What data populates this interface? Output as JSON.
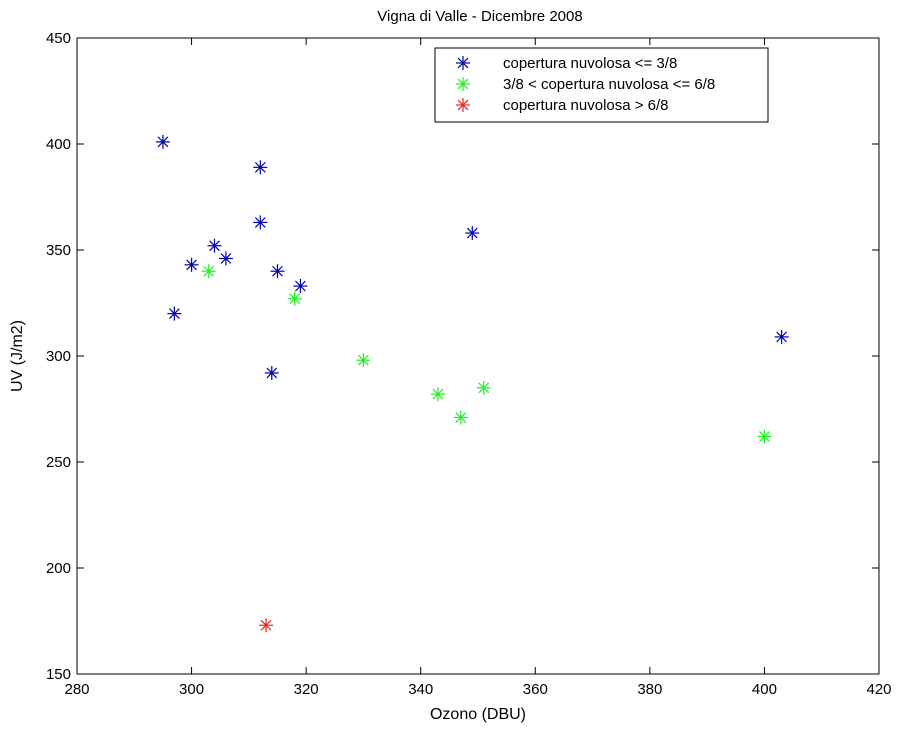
{
  "chart_data": {
    "type": "scatter",
    "title": "Vigna di Valle - Dicembre 2008",
    "xlabel": "Ozono (DBU)",
    "ylabel": "UV (J/m2)",
    "xlim": [
      280,
      420
    ],
    "ylim": [
      150,
      450
    ],
    "xticks": [
      280,
      300,
      320,
      340,
      360,
      380,
      400,
      420
    ],
    "yticks": [
      150,
      200,
      250,
      300,
      350,
      400,
      450
    ],
    "grid": false,
    "legend_position": "top-right",
    "marker": "asterisk",
    "series": [
      {
        "name": "copertura nuvolosa <= 3/8",
        "color": "#0000aa",
        "points": [
          [
            295,
            401
          ],
          [
            312,
            389
          ],
          [
            312,
            363
          ],
          [
            304,
            352
          ],
          [
            306,
            346
          ],
          [
            300,
            343
          ],
          [
            315,
            340
          ],
          [
            319,
            333
          ],
          [
            297,
            320
          ],
          [
            314,
            292
          ],
          [
            349,
            358
          ],
          [
            403,
            309
          ]
        ]
      },
      {
        "name": "3/8 < copertura nuvolosa <= 6/8",
        "color": "#22ee22",
        "points": [
          [
            303,
            340
          ],
          [
            318,
            327
          ],
          [
            330,
            298
          ],
          [
            343,
            282
          ],
          [
            347,
            271
          ],
          [
            351,
            285
          ],
          [
            400,
            262
          ]
        ]
      },
      {
        "name": "copertura nuvolosa > 6/8",
        "color": "#ee2222",
        "points": [
          [
            313,
            173
          ]
        ]
      }
    ]
  }
}
